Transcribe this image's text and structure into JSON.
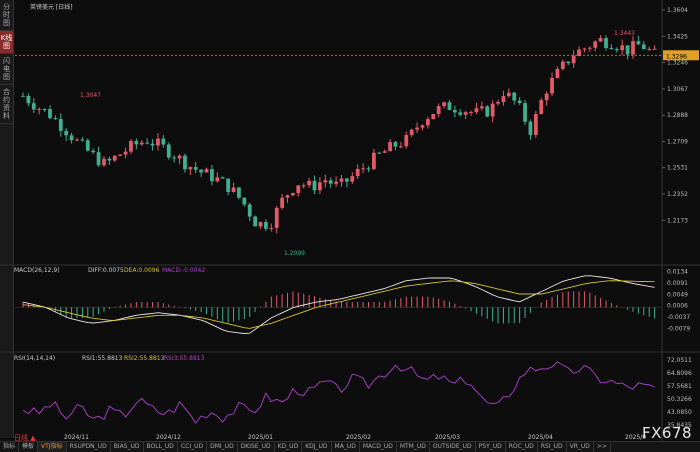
{
  "sidebar": {
    "items": [
      {
        "label": "分时图",
        "active": false
      },
      {
        "label": "K线图",
        "active": true
      },
      {
        "label": "闪电图",
        "active": false
      },
      {
        "label": "合约资料",
        "active": false
      }
    ]
  },
  "chart_title": "英镑美元 [日线]",
  "price_axis": [
    "1.3604",
    "1.3425",
    "1.3246",
    "1.3067",
    "1.2888",
    "1.2709",
    "1.2531",
    "1.2352",
    "1.2173"
  ],
  "current_price": "1.3296",
  "annotations": {
    "high1": "1.3047",
    "low": "1.2099",
    "high2": "1.3443"
  },
  "macd": {
    "legend": "MACD(26,12,9)",
    "diff": "DIFF:0.0075",
    "dea": "DEA:0.0096",
    "macd": "MACD:-0.0042",
    "axis": [
      "0.0134",
      "0.0091",
      "0.0049",
      "0.0006",
      "-0.0037",
      "-0.0079"
    ]
  },
  "rsi": {
    "legend": "RSI(14,14,14)",
    "rsi1": "RSI1:55.8813",
    "rsi2": "RSI2:55.8813",
    "rsi3": "RSI3:55.8813",
    "axis": [
      "72.0511",
      "64.8096",
      "57.5681",
      "50.3266",
      "43.0850",
      "35.8435"
    ]
  },
  "dates": [
    "2024/11",
    "2024/12",
    "2025/01",
    "2025/02",
    "2025/03",
    "2025/04",
    "2025/0"
  ],
  "period_button": "日线 ▲",
  "bottom_tabs": [
    "指标",
    "模板",
    "VTJ指标",
    "RSUPDN_UD",
    "BIAS_UD",
    "BOLL_UD",
    "CCI_UD",
    "DMI_UD",
    "DKISE_UD",
    "KD_UD",
    "KDJ_UD",
    "MA_UD",
    "MACD_UD",
    "MTM_UD",
    "OUTSIDE_UD",
    "PSY_UD",
    "ROC_UD",
    "RSI_UD",
    "VR_UD",
    ">>"
  ],
  "watermark": "FX678",
  "colors": {
    "up": "#e25a6a",
    "down": "#3fb08f",
    "dif": "#e8e8e8",
    "dea": "#d4c230",
    "rsi": "#b040d0",
    "accent": "#e0a020"
  },
  "chart_data": {
    "type": "candlestick",
    "x": [
      "2024/11",
      "2024/12",
      "2025/01",
      "2025/02",
      "2025/03",
      "2025/04",
      "2025/0"
    ],
    "close_trend": [
      1.302,
      1.295,
      1.289,
      1.28,
      1.27,
      1.262,
      1.255,
      1.262,
      1.268,
      1.272,
      1.268,
      1.262,
      1.255,
      1.25,
      1.246,
      1.24,
      1.23,
      1.215,
      1.215,
      1.233,
      1.243,
      1.24,
      1.245,
      1.24,
      1.247,
      1.255,
      1.262,
      1.268,
      1.272,
      1.285,
      1.292,
      1.295,
      1.293,
      1.29,
      1.292,
      1.305,
      1.296,
      1.278,
      1.305,
      1.318,
      1.33,
      1.335,
      1.34,
      1.338,
      1.333,
      1.337,
      1.33
    ],
    "ylim": [
      1.2099,
      1.3604
    ],
    "macd_dif_trend": [
      0.002,
      0.0,
      -0.004,
      -0.006,
      -0.005,
      -0.003,
      -0.002,
      -0.003,
      -0.005,
      -0.009,
      -0.01,
      -0.004,
      0.0,
      0.002,
      0.003,
      0.005,
      0.007,
      0.01,
      0.011,
      0.011,
      0.008,
      0.004,
      0.002,
      0.006,
      0.01,
      0.012,
      0.011,
      0.009,
      0.0075
    ],
    "macd_dea_trend": [
      0.001,
      0.0,
      -0.002,
      -0.004,
      -0.005,
      -0.004,
      -0.003,
      -0.003,
      -0.004,
      -0.006,
      -0.008,
      -0.006,
      -0.003,
      0.0,
      0.002,
      0.004,
      0.006,
      0.008,
      0.009,
      0.01,
      0.009,
      0.007,
      0.005,
      0.005,
      0.007,
      0.009,
      0.01,
      0.0098,
      0.0096
    ],
    "rsi_trend": [
      45,
      42,
      48,
      40,
      46,
      38,
      44,
      41,
      50,
      45,
      42,
      48,
      38,
      44,
      40,
      46,
      43,
      52,
      48,
      56,
      54,
      60,
      55,
      62,
      58,
      64,
      70,
      66,
      60,
      63,
      58,
      62,
      50,
      45,
      55,
      66,
      68,
      70,
      65,
      68,
      62,
      60,
      57,
      58,
      55.88
    ],
    "rsi_ylim": [
      35.8435,
      72.0511
    ]
  }
}
